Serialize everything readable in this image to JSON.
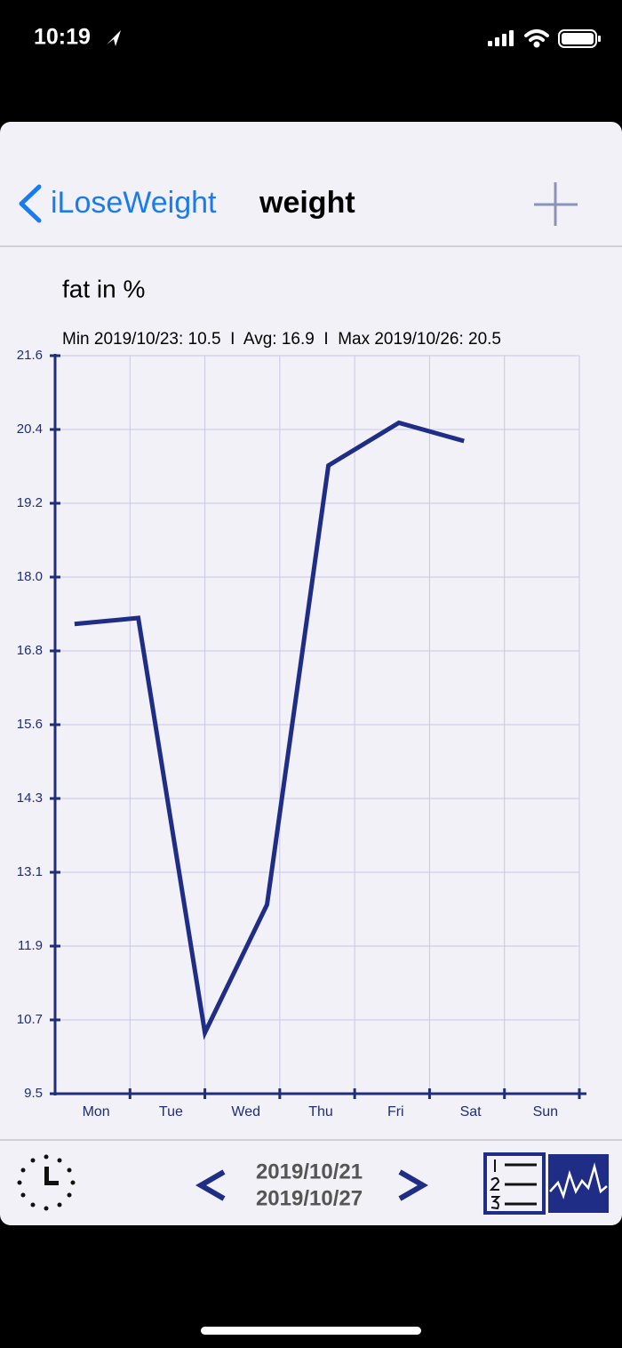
{
  "status_bar": {
    "time": "10:19"
  },
  "nav": {
    "back": "iLoseWeight",
    "title": "weight"
  },
  "chart_data": {
    "type": "line",
    "title": "fat in %",
    "subtitle": "Min 2019/10/23: 10.5  I  Avg: 16.9  I  Max 2019/10/26: 20.5",
    "categories": [
      "Mon",
      "Tue",
      "Wed",
      "Thu",
      "Fri",
      "Sat",
      "Sun"
    ],
    "x": [
      0.26,
      1.11,
      2.0,
      2.83,
      3.65,
      4.59,
      5.46
    ],
    "series": [
      {
        "color": "#1f2d87",
        "values": [
          17.2,
          17.3,
          10.5,
          12.6,
          19.8,
          20.5,
          20.2
        ]
      }
    ],
    "xlim": [
      0,
      7
    ],
    "ylim": [
      9.5,
      21.6
    ],
    "yticks": [
      9.5,
      {
        "value": 10.71,
        "label": "10.7"
      },
      {
        "value": 11.92,
        "label": "11.9"
      },
      {
        "value": 13.13,
        "label": "13.1"
      },
      {
        "value": 14.34,
        "label": "14.3"
      },
      {
        "value": 15.55,
        "label": "15.6"
      },
      {
        "value": 16.76,
        "label": "16.8"
      },
      {
        "value": 17.97,
        "label": "18.0"
      },
      {
        "value": 19.18,
        "label": "19.2"
      },
      {
        "value": 20.39,
        "label": "20.4"
      },
      21.6
    ],
    "grid": true
  },
  "footer": {
    "date_start": "2019/10/21",
    "date_end": "2019/10/27"
  }
}
